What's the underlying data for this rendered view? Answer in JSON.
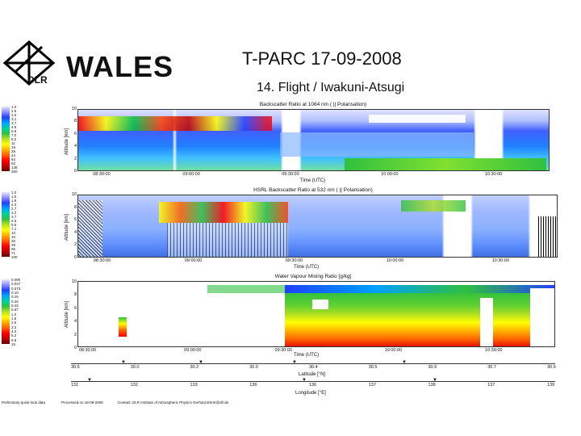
{
  "header": {
    "logo_text": "DLR",
    "brand": "WALES",
    "title": "T-PARC   17-09-2008",
    "subtitle": "14. Flight / Iwakuni-Atsugi"
  },
  "panels": [
    {
      "title": "Backscatter Ratio at 1064 nm  ( || Polarisation)",
      "ylabel": "Altitude [km]",
      "yticks": [
        "0",
        "2",
        "4",
        "6",
        "8",
        "10"
      ],
      "xticks": [
        "08:30:00",
        "09:00:00",
        "09:30:00",
        "10:00:00",
        "10:30:00"
      ],
      "xlabel": "Time (UTC)",
      "colorbar": [
        "1.0",
        "1.5",
        "2.0",
        "3.1",
        "3.7",
        "4.5",
        "5.8",
        "7.0",
        "8.2",
        "11",
        "19",
        "28",
        "44",
        "64",
        "93",
        "138",
        "200"
      ]
    },
    {
      "title": "HSRL Backscatter Ratio at 532 nm  ( || Polarisation)",
      "ylabel": "Altitude [km]",
      "yticks": [
        "0",
        "2",
        "4",
        "6",
        "8",
        "10"
      ],
      "xticks": [
        "08:30:00",
        "09:00:00",
        "09:30:00",
        "10:00:00",
        "10:30:00"
      ],
      "xlabel": "Time (UTC)",
      "colorbar": [
        "1.0",
        "1.5",
        "1.9",
        "2.3",
        "2.7",
        "3.2",
        "3.7",
        "4.6",
        "5.8",
        "7.1",
        "10",
        "15",
        "26",
        "39",
        "55",
        "71",
        "100"
      ]
    },
    {
      "title": "Water Vapour Mixing Ratio [g/kg]",
      "ylabel": "Altitude [km]",
      "yticks": [
        "0",
        "2",
        "4",
        "6",
        "8",
        "10"
      ],
      "xticks": [
        "08:30:00",
        "09:00:00",
        "09:30:00",
        "10:00:00",
        "10:30:00"
      ],
      "xlabel": "Time (UTC)",
      "colorbar": [
        "0.000",
        "0.047",
        "0.073",
        "0.10",
        "0.16",
        "0.26",
        "0.43",
        "0.67",
        "1.0",
        "1.6",
        "2.5",
        "3.2",
        "4.0",
        "5.2",
        "6.8",
        "15"
      ]
    }
  ],
  "latitude": {
    "ticks": [
      "30.6",
      "30.0",
      "30.2",
      "30.0",
      "30.4",
      "30.5",
      "30.9",
      "30.7",
      "30.9"
    ],
    "label": "Latitude [°N]"
  },
  "longitude": {
    "ticks": [
      "131",
      "132",
      "133",
      "136",
      "136",
      "137",
      "138",
      "137",
      "139"
    ],
    "label": "Longitude [°E]"
  },
  "footer": {
    "left": "Preliminary quick-look data",
    "mid": "Processed on 18-09-2008",
    "right": "Contact: DLR Institute of Atmospheric Physics  Gerhard.Ehret@dlr.de"
  }
}
